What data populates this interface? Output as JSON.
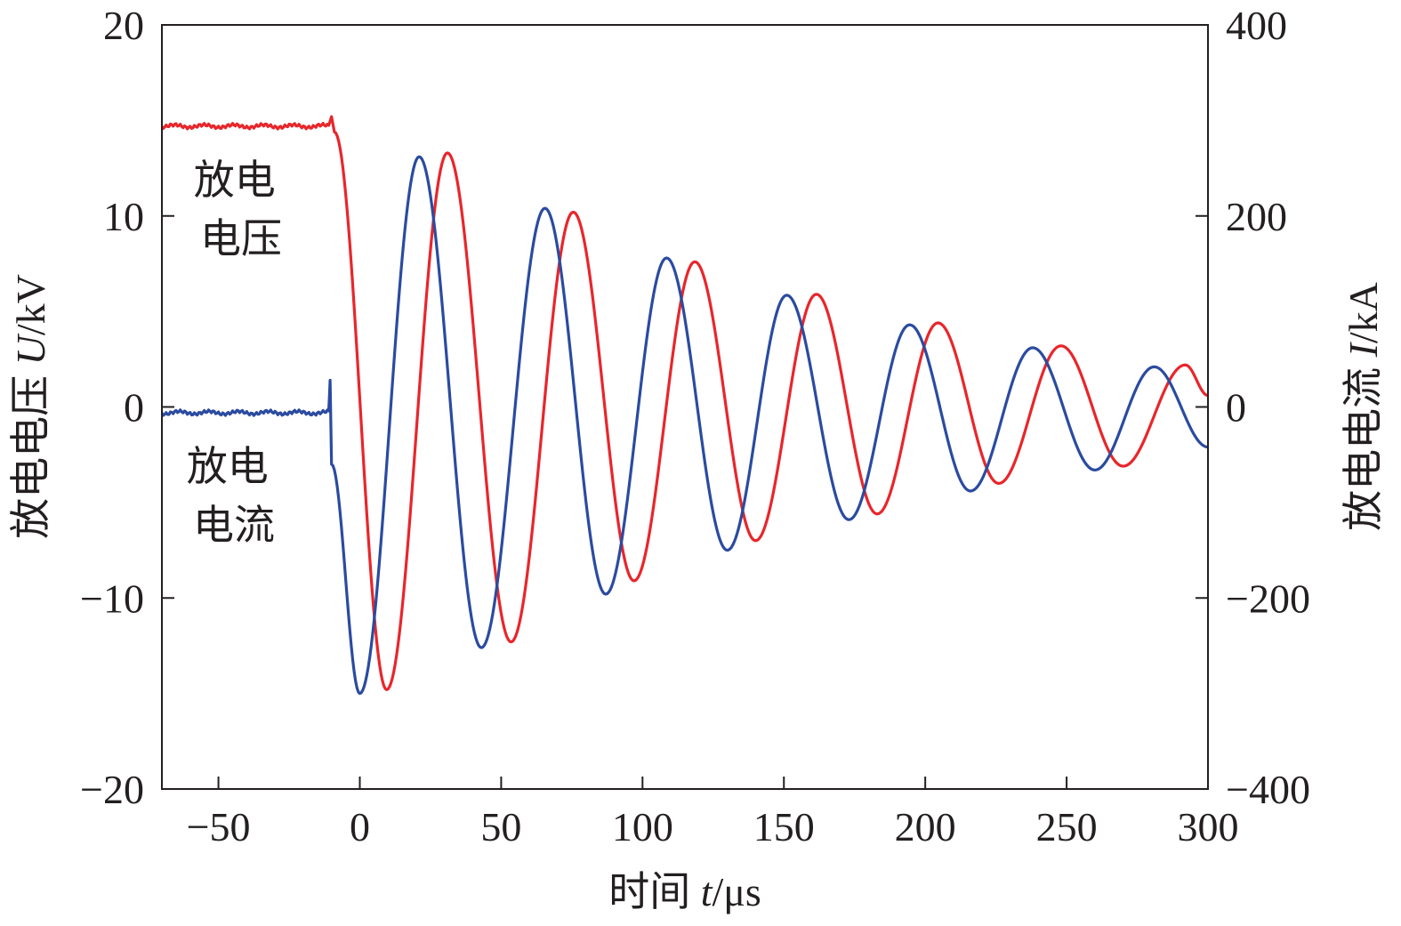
{
  "chart_data": {
    "type": "line",
    "x_axis": {
      "label_text": "时间 ",
      "label_var": "t",
      "label_unit": "/μs",
      "range": [
        -70,
        300
      ],
      "ticks": [
        -50,
        0,
        50,
        100,
        150,
        200,
        250,
        300
      ],
      "tick_labels": [
        "−50",
        "0",
        "50",
        "100",
        "150",
        "200",
        "250",
        "300"
      ]
    },
    "y_left": {
      "label_text": "放电电压 ",
      "label_var": "U",
      "label_unit": "/kV",
      "range": [
        -20,
        20
      ],
      "ticks": [
        -20,
        -10,
        0,
        10,
        20
      ],
      "tick_labels": [
        "−20",
        "−10",
        "0",
        "10",
        "20"
      ]
    },
    "y_right": {
      "label_text": "放电电流 ",
      "label_var": "I",
      "label_unit": "/kA",
      "range": [
        -400,
        400
      ],
      "ticks": [
        -400,
        -200,
        0,
        200,
        400
      ],
      "tick_labels": [
        "−400",
        "−200",
        "0",
        "200",
        "400"
      ]
    },
    "series": [
      {
        "name": "放电电压",
        "axis": "left",
        "color": "#e8262b",
        "points": [
          [
            -70,
            14.7
          ],
          [
            -11,
            14.7
          ],
          [
            -10,
            15.2
          ],
          [
            -9,
            14.4
          ],
          [
            9.5,
            -14.8
          ],
          [
            31,
            13.3
          ],
          [
            53.5,
            -12.3
          ],
          [
            75.5,
            10.2
          ],
          [
            97,
            -9.1
          ],
          [
            118.5,
            7.6
          ],
          [
            140,
            -7.0
          ],
          [
            161.5,
            5.9
          ],
          [
            183,
            -5.6
          ],
          [
            204.5,
            4.4
          ],
          [
            226,
            -4.0
          ],
          [
            248,
            3.2
          ],
          [
            270,
            -3.1
          ],
          [
            292,
            2.2
          ],
          [
            300,
            0.6
          ]
        ]
      },
      {
        "name": "放电电流",
        "axis": "right",
        "color": "#2b4ba0",
        "points": [
          [
            -70,
            -6
          ],
          [
            -11,
            -6
          ],
          [
            -10.5,
            28
          ],
          [
            -10,
            -60
          ],
          [
            0,
            -300
          ],
          [
            21,
            262
          ],
          [
            43,
            -252
          ],
          [
            65.5,
            208
          ],
          [
            87,
            -196
          ],
          [
            108.5,
            156
          ],
          [
            130,
            -150
          ],
          [
            151,
            117
          ],
          [
            173,
            -118
          ],
          [
            194.5,
            86
          ],
          [
            216,
            -88
          ],
          [
            238,
            62
          ],
          [
            260,
            -66
          ],
          [
            281,
            42
          ],
          [
            300,
            -42
          ]
        ]
      }
    ],
    "annotations": [
      {
        "lines": [
          "放电",
          "电压"
        ]
      },
      {
        "lines": [
          "放电",
          "电流"
        ]
      }
    ]
  }
}
